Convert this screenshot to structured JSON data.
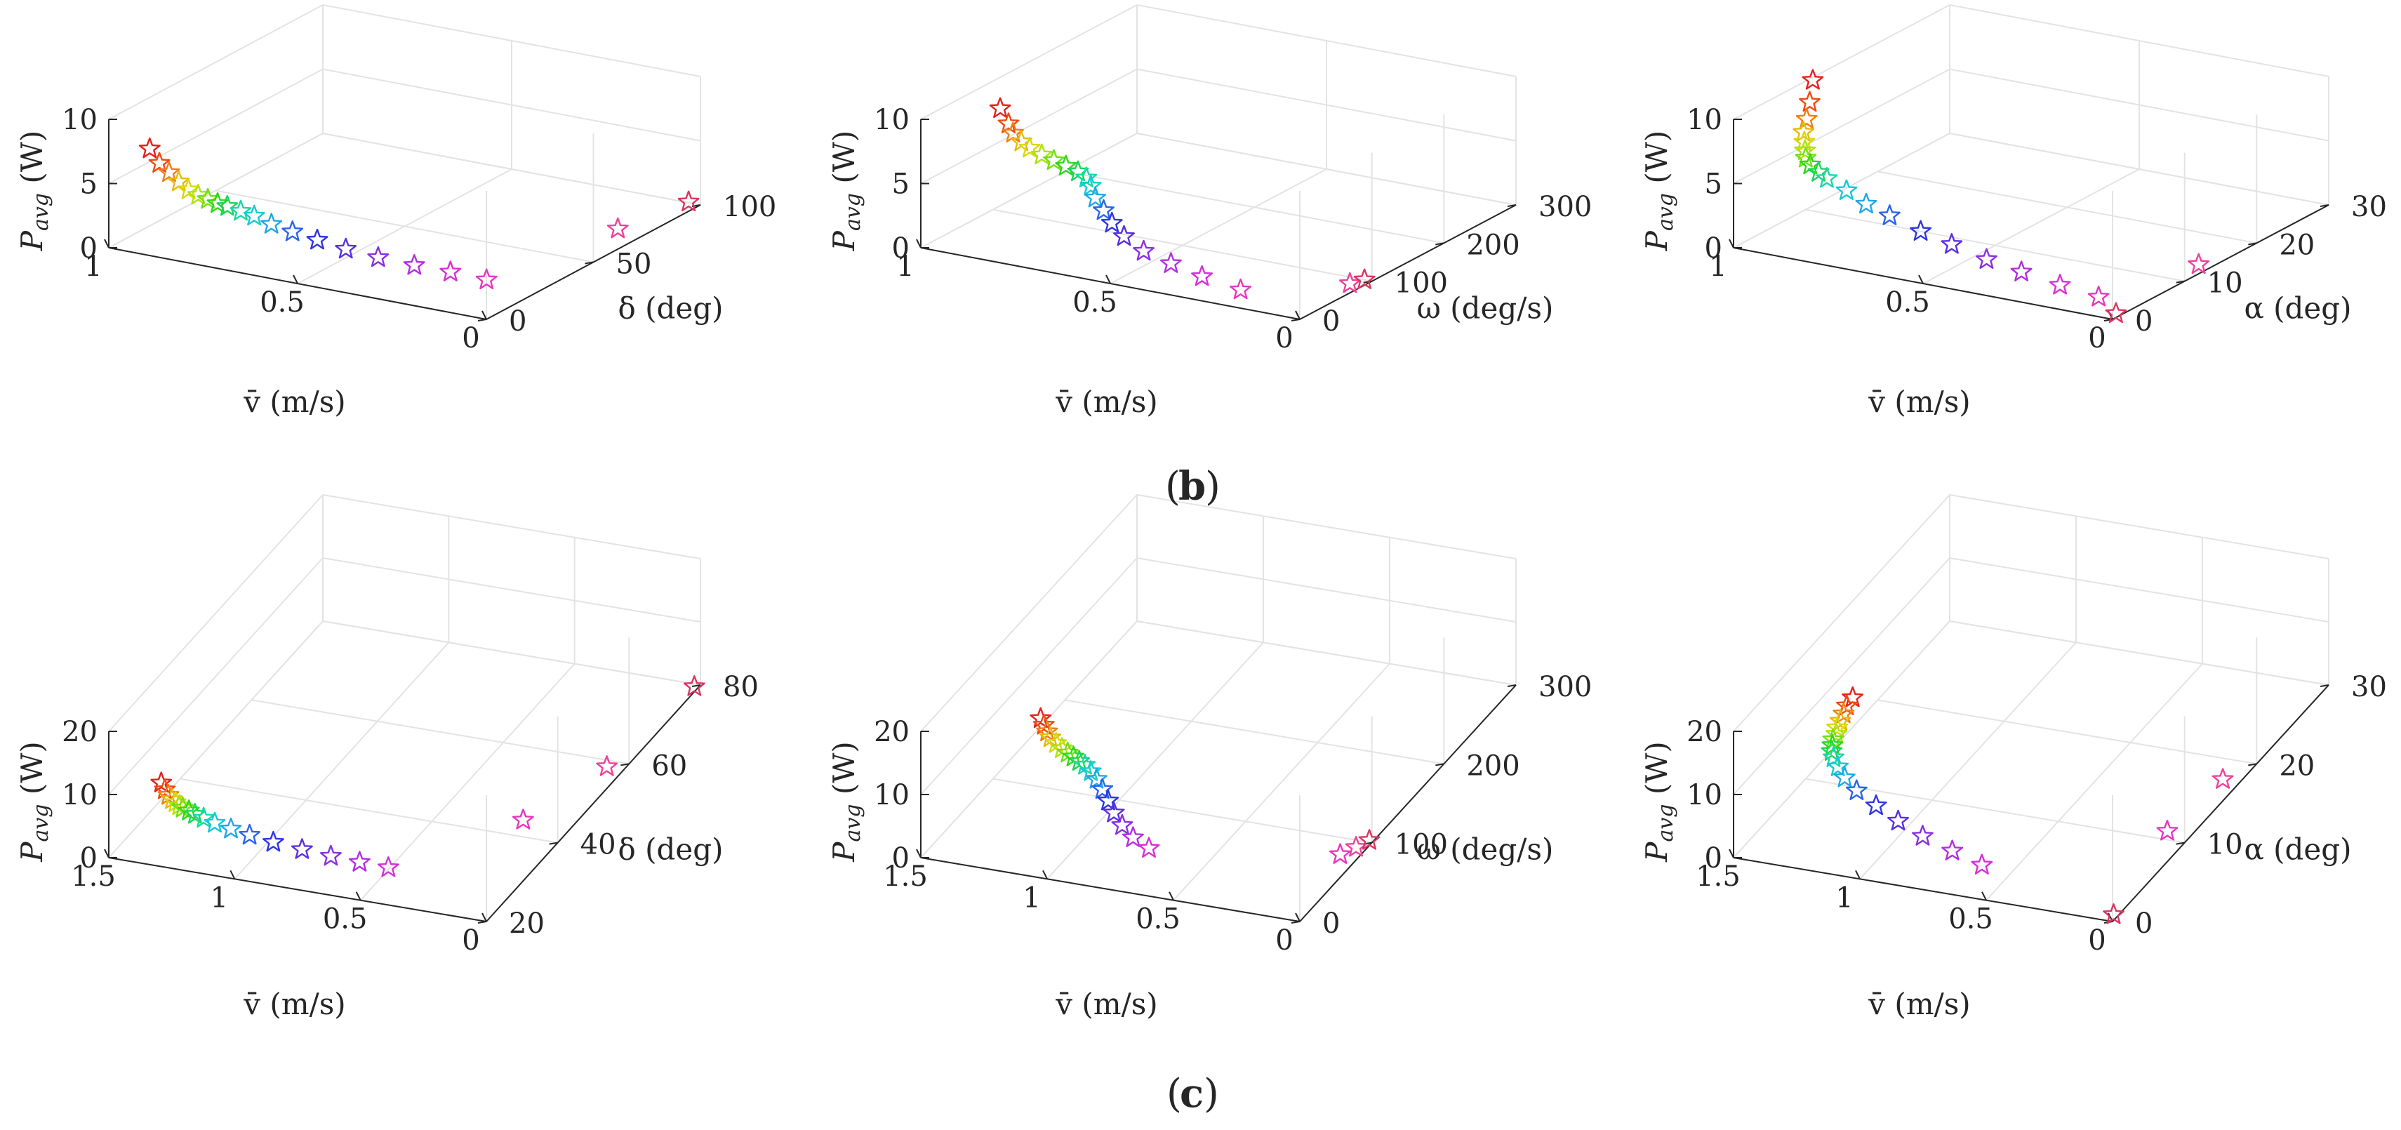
{
  "figure_labels": {
    "b": "b",
    "c": "c"
  },
  "axis_text": {
    "vbar_m_s": "v̄ (m/s)",
    "p_avg_w": "Pavg (W)",
    "p_sym": "P",
    "p_sub": "avg",
    "p_unit": " (W)",
    "delta_deg": "δ (deg)",
    "omega_deg_s": "ω (deg/s)",
    "alpha_deg": "α (deg)"
  },
  "colors": {
    "palette": [
      "#e8201a",
      "#f04a10",
      "#f07f12",
      "#e9b80d",
      "#d9d80b",
      "#aee30c",
      "#6fe20f",
      "#2fd81a",
      "#18d65a",
      "#1bd7a6",
      "#15c9d8",
      "#20a7e6",
      "#2a64eb",
      "#2d35e2",
      "#5a2fe2",
      "#8a2fe0",
      "#b32ede",
      "#d82fd8",
      "#e836c0",
      "#f0409a",
      "#d9365f"
    ],
    "grid": "#e3e3e3",
    "axis": "#262626"
  },
  "chart_data": [
    {
      "id": "b1",
      "type": "scatter3d",
      "row": "b",
      "xlabel": "v̄ (m/s)",
      "ylabel": "δ (deg)",
      "zlabel": "Pavg (W)",
      "xlim": [
        0,
        1
      ],
      "ylim": [
        0,
        100
      ],
      "zlim": [
        0,
        10
      ],
      "xticks": [
        0,
        0.5,
        1
      ],
      "yticks": [
        0,
        50,
        100
      ],
      "zticks": [
        0,
        5,
        10
      ],
      "xtick_labels": [
        "0",
        "0.5",
        "1"
      ],
      "ytick_labels": [
        "0",
        "50",
        "100"
      ],
      "ztick_labels": [
        "0",
        "5",
        "10"
      ],
      "points": [
        {
          "x": 0.92,
          "y": 5,
          "z": 7.7
        },
        {
          "x": 0.9,
          "y": 6,
          "z": 6.6
        },
        {
          "x": 0.88,
          "y": 7,
          "z": 5.9
        },
        {
          "x": 0.86,
          "y": 8,
          "z": 5.2
        },
        {
          "x": 0.84,
          "y": 9,
          "z": 4.6
        },
        {
          "x": 0.82,
          "y": 10,
          "z": 4.2
        },
        {
          "x": 0.8,
          "y": 11,
          "z": 3.9
        },
        {
          "x": 0.78,
          "y": 12,
          "z": 3.6
        },
        {
          "x": 0.76,
          "y": 13,
          "z": 3.4
        },
        {
          "x": 0.73,
          "y": 14,
          "z": 3.1
        },
        {
          "x": 0.7,
          "y": 15,
          "z": 2.8
        },
        {
          "x": 0.66,
          "y": 16,
          "z": 2.3
        },
        {
          "x": 0.61,
          "y": 17,
          "z": 1.9
        },
        {
          "x": 0.55,
          "y": 18,
          "z": 1.5
        },
        {
          "x": 0.48,
          "y": 19,
          "z": 1.1
        },
        {
          "x": 0.4,
          "y": 20,
          "z": 0.8
        },
        {
          "x": 0.31,
          "y": 21,
          "z": 0.6
        },
        {
          "x": 0.22,
          "y": 22,
          "z": 0.5
        },
        {
          "x": 0.13,
          "y": 23,
          "z": 0.3
        },
        {
          "x": 0.06,
          "y": 72,
          "z": 0.3
        },
        {
          "x": 0.02,
          "y": 98,
          "z": 0.3
        }
      ]
    },
    {
      "id": "b2",
      "type": "scatter3d",
      "row": "b",
      "xlabel": "v̄ (m/s)",
      "ylabel": "ω (deg/s)",
      "zlabel": "Pavg (W)",
      "xlim": [
        0,
        1
      ],
      "ylim": [
        0,
        300
      ],
      "zlim": [
        0,
        10
      ],
      "xticks": [
        0,
        0.5,
        1
      ],
      "yticks": [
        0,
        100,
        200,
        300
      ],
      "zticks": [
        0,
        5,
        10
      ],
      "xtick_labels": [
        "0",
        "0.5",
        "1"
      ],
      "ytick_labels": [
        "0",
        "100",
        "200",
        "300"
      ],
      "ztick_labels": [
        "0",
        "5",
        "10"
      ],
      "points": [
        {
          "x": 0.8,
          "y": 5,
          "z": 11.8
        },
        {
          "x": 0.78,
          "y": 6,
          "z": 10.7
        },
        {
          "x": 0.77,
          "y": 7,
          "z": 10.0
        },
        {
          "x": 0.75,
          "y": 8,
          "z": 9.4
        },
        {
          "x": 0.73,
          "y": 9,
          "z": 9.0
        },
        {
          "x": 0.7,
          "y": 10,
          "z": 8.6
        },
        {
          "x": 0.67,
          "y": 11,
          "z": 8.3
        },
        {
          "x": 0.64,
          "y": 12,
          "z": 8.0
        },
        {
          "x": 0.61,
          "y": 13,
          "z": 7.7
        },
        {
          "x": 0.59,
          "y": 14,
          "z": 7.3
        },
        {
          "x": 0.58,
          "y": 15,
          "z": 6.7
        },
        {
          "x": 0.57,
          "y": 16,
          "z": 5.8
        },
        {
          "x": 0.55,
          "y": 17,
          "z": 4.9
        },
        {
          "x": 0.53,
          "y": 18,
          "z": 4.0
        },
        {
          "x": 0.5,
          "y": 19,
          "z": 3.1
        },
        {
          "x": 0.45,
          "y": 20,
          "z": 2.2
        },
        {
          "x": 0.38,
          "y": 21,
          "z": 1.6
        },
        {
          "x": 0.3,
          "y": 22,
          "z": 1.0
        },
        {
          "x": 0.2,
          "y": 23,
          "z": 0.5
        },
        {
          "x": 0.02,
          "y": 80,
          "z": 0.3
        },
        {
          "x": 0.01,
          "y": 95,
          "z": 0.2
        }
      ]
    },
    {
      "id": "b3",
      "type": "scatter3d",
      "row": "b",
      "xlabel": "v̄ (m/s)",
      "ylabel": "α (deg)",
      "zlabel": "Pavg (W)",
      "xlim": [
        0,
        1
      ],
      "ylim": [
        0,
        30
      ],
      "zlim": [
        0,
        10
      ],
      "xticks": [
        0,
        0.5,
        1
      ],
      "yticks": [
        0,
        10,
        20,
        30
      ],
      "zticks": [
        0,
        5,
        10
      ],
      "xtick_labels": [
        "0",
        "0.5",
        "1"
      ],
      "ytick_labels": [
        "0",
        "10",
        "20",
        "30"
      ],
      "ztick_labels": [
        "0",
        "5",
        "10"
      ],
      "points": [
        {
          "x": 0.81,
          "y": 1.0,
          "z": 13.8
        },
        {
          "x": 0.82,
          "y": 1.1,
          "z": 12.0
        },
        {
          "x": 0.83,
          "y": 1.2,
          "z": 10.6
        },
        {
          "x": 0.84,
          "y": 1.3,
          "z": 9.5
        },
        {
          "x": 0.84,
          "y": 1.4,
          "z": 8.7
        },
        {
          "x": 0.84,
          "y": 1.5,
          "z": 8.0
        },
        {
          "x": 0.84,
          "y": 1.6,
          "z": 7.4
        },
        {
          "x": 0.83,
          "y": 1.7,
          "z": 6.9
        },
        {
          "x": 0.81,
          "y": 1.8,
          "z": 6.4
        },
        {
          "x": 0.79,
          "y": 1.9,
          "z": 6.0
        },
        {
          "x": 0.74,
          "y": 2.0,
          "z": 5.3
        },
        {
          "x": 0.69,
          "y": 2.1,
          "z": 4.5
        },
        {
          "x": 0.63,
          "y": 2.2,
          "z": 3.9
        },
        {
          "x": 0.55,
          "y": 2.3,
          "z": 3.1
        },
        {
          "x": 0.47,
          "y": 2.4,
          "z": 2.5
        },
        {
          "x": 0.38,
          "y": 2.5,
          "z": 1.8
        },
        {
          "x": 0.29,
          "y": 2.6,
          "z": 1.3
        },
        {
          "x": 0.19,
          "y": 2.7,
          "z": 0.8
        },
        {
          "x": 0.09,
          "y": 2.8,
          "z": 0.4
        },
        {
          "x": 0.02,
          "y": 13.0,
          "z": 0.3
        },
        {
          "x": 0.01,
          "y": 1.0,
          "z": 0.1
        }
      ]
    },
    {
      "id": "c1",
      "type": "scatter3d",
      "row": "c",
      "xlabel": "v̄ (m/s)",
      "ylabel": "δ (deg)",
      "zlabel": "Pavg (W)",
      "xlim": [
        0,
        1.5
      ],
      "ylim": [
        20,
        80
      ],
      "zlim": [
        0,
        20
      ],
      "xticks": [
        0,
        0.5,
        1,
        1.5
      ],
      "yticks": [
        20,
        40,
        60,
        80
      ],
      "zticks": [
        0,
        10,
        20
      ],
      "xtick_labels": [
        "0",
        "0.5",
        "1",
        "1.5"
      ],
      "ytick_labels": [
        "20",
        "40",
        "60",
        "80"
      ],
      "ztick_labels": [
        "0",
        "10",
        "20"
      ],
      "points": [
        {
          "x": 1.32,
          "y": 22,
          "z": 11.8
        },
        {
          "x": 1.31,
          "y": 22.3,
          "z": 10.6
        },
        {
          "x": 1.3,
          "y": 22.6,
          "z": 9.6
        },
        {
          "x": 1.29,
          "y": 22.9,
          "z": 8.8
        },
        {
          "x": 1.28,
          "y": 23.2,
          "z": 8.2
        },
        {
          "x": 1.27,
          "y": 23.5,
          "z": 7.6
        },
        {
          "x": 1.26,
          "y": 23.8,
          "z": 7.1
        },
        {
          "x": 1.24,
          "y": 24.1,
          "z": 6.6
        },
        {
          "x": 1.22,
          "y": 24.4,
          "z": 6.0
        },
        {
          "x": 1.19,
          "y": 24.7,
          "z": 5.4
        },
        {
          "x": 1.15,
          "y": 25.0,
          "z": 4.7
        },
        {
          "x": 1.09,
          "y": 25.3,
          "z": 4.0
        },
        {
          "x": 1.02,
          "y": 25.6,
          "z": 3.3
        },
        {
          "x": 0.93,
          "y": 25.9,
          "z": 2.6
        },
        {
          "x": 0.82,
          "y": 26.2,
          "z": 2.0
        },
        {
          "x": 0.71,
          "y": 26.5,
          "z": 1.5
        },
        {
          "x": 0.6,
          "y": 26.8,
          "z": 1.1
        },
        {
          "x": 0.49,
          "y": 27.1,
          "z": 0.8
        },
        {
          "x": 0.18,
          "y": 43,
          "z": 0.5
        },
        {
          "x": 0.06,
          "y": 58,
          "z": 0.4
        },
        {
          "x": 0.01,
          "y": 79,
          "z": 0.3
        }
      ]
    },
    {
      "id": "c2",
      "type": "scatter3d",
      "row": "c",
      "xlabel": "v̄ (m/s)",
      "ylabel": "ω (deg/s)",
      "zlabel": "Pavg (W)",
      "xlim": [
        0,
        1.5
      ],
      "ylim": [
        0,
        300
      ],
      "zlim": [
        0,
        20
      ],
      "xticks": [
        0,
        0.5,
        1,
        1.5
      ],
      "yticks": [
        0,
        100,
        200,
        300
      ],
      "zticks": [
        0,
        10,
        20
      ],
      "xtick_labels": [
        "0",
        "0.5",
        "1",
        "1.5"
      ],
      "ytick_labels": [
        "0",
        "100",
        "200",
        "300"
      ],
      "ztick_labels": [
        "0",
        "10",
        "20"
      ],
      "points": [
        {
          "x": 1.04,
          "y": 5,
          "z": 24.5
        },
        {
          "x": 1.03,
          "y": 6,
          "z": 23.4
        },
        {
          "x": 1.02,
          "y": 7,
          "z": 22.3
        },
        {
          "x": 1.01,
          "y": 8,
          "z": 21.3
        },
        {
          "x": 0.99,
          "y": 9,
          "z": 20.4
        },
        {
          "x": 0.97,
          "y": 10,
          "z": 19.6
        },
        {
          "x": 0.95,
          "y": 11,
          "z": 18.9
        },
        {
          "x": 0.93,
          "y": 12,
          "z": 18.3
        },
        {
          "x": 0.91,
          "y": 13,
          "z": 17.6
        },
        {
          "x": 0.89,
          "y": 14,
          "z": 17.0
        },
        {
          "x": 0.87,
          "y": 15,
          "z": 16.0
        },
        {
          "x": 0.85,
          "y": 16,
          "z": 14.8
        },
        {
          "x": 0.83,
          "y": 17,
          "z": 13.2
        },
        {
          "x": 0.81,
          "y": 18,
          "z": 11.4
        },
        {
          "x": 0.79,
          "y": 19,
          "z": 9.5
        },
        {
          "x": 0.76,
          "y": 20,
          "z": 7.6
        },
        {
          "x": 0.72,
          "y": 21,
          "z": 5.8
        },
        {
          "x": 0.66,
          "y": 22,
          "z": 4.4
        },
        {
          "x": 0.04,
          "y": 70,
          "z": 1.6
        },
        {
          "x": 0.02,
          "y": 85,
          "z": 1.0
        },
        {
          "x": 0.01,
          "y": 100,
          "z": 0.3
        }
      ]
    },
    {
      "id": "c3",
      "type": "scatter3d",
      "row": "c",
      "xlabel": "v̄ (m/s)",
      "ylabel": "α (deg)",
      "zlabel": "Pavg (W)",
      "xlim": [
        0,
        1.5
      ],
      "ylim": [
        0,
        30
      ],
      "zlim": [
        0,
        20
      ],
      "xticks": [
        0,
        0.5,
        1,
        1.5
      ],
      "yticks": [
        0,
        10,
        20,
        30
      ],
      "zticks": [
        0,
        10,
        20
      ],
      "xtick_labels": [
        "0",
        "0.5",
        "1",
        "1.5"
      ],
      "ytick_labels": [
        "0",
        "10",
        "20",
        "30"
      ],
      "ztick_labels": [
        "0",
        "10",
        "20"
      ],
      "points": [
        {
          "x": 1.1,
          "y": 2.5,
          "z": 24.9
        },
        {
          "x": 1.12,
          "y": 2.4,
          "z": 23.6
        },
        {
          "x": 1.13,
          "y": 2.3,
          "z": 22.4
        },
        {
          "x": 1.14,
          "y": 2.2,
          "z": 21.3
        },
        {
          "x": 1.15,
          "y": 2.1,
          "z": 20.3
        },
        {
          "x": 1.15,
          "y": 2.0,
          "z": 19.4
        },
        {
          "x": 1.16,
          "y": 1.9,
          "z": 18.6
        },
        {
          "x": 1.16,
          "y": 1.8,
          "z": 17.8
        },
        {
          "x": 1.16,
          "y": 1.7,
          "z": 17.0
        },
        {
          "x": 1.15,
          "y": 1.6,
          "z": 16.2
        },
        {
          "x": 1.13,
          "y": 1.5,
          "z": 15.0
        },
        {
          "x": 1.1,
          "y": 1.4,
          "z": 13.6
        },
        {
          "x": 1.05,
          "y": 1.3,
          "z": 12.0
        },
        {
          "x": 0.97,
          "y": 1.2,
          "z": 10.3
        },
        {
          "x": 0.88,
          "y": 1.1,
          "z": 8.6
        },
        {
          "x": 0.78,
          "y": 1.0,
          "z": 7.0
        },
        {
          "x": 0.66,
          "y": 0.9,
          "z": 5.6
        },
        {
          "x": 0.54,
          "y": 0.8,
          "z": 4.3
        },
        {
          "x": 0.04,
          "y": 9.0,
          "z": 2.8
        },
        {
          "x": 0.02,
          "y": 16.0,
          "z": 2.4
        },
        {
          "x": 0.01,
          "y": 0.5,
          "z": 0.4
        }
      ]
    }
  ]
}
